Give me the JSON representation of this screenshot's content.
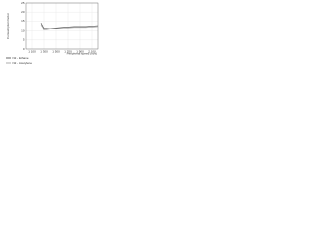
{
  "chart_data": {
    "type": "line",
    "x_label": "Peripheral speed (m/s)",
    "y_label": "Consumption factor",
    "x": [
      1250,
      1300,
      1400,
      1600,
      1800,
      2000,
      2200
    ],
    "series": [
      {
        "name": "N2 - Ethane",
        "color": "#444444",
        "values": [
          14,
          11,
          11,
          11.5,
          12,
          12,
          12.5
        ]
      },
      {
        "name": "N2 - Acetylene",
        "color": "#9a9a9a",
        "values": [
          13,
          10.5,
          11,
          11,
          11.5,
          11.5,
          12
        ]
      }
    ],
    "xlim": [
      1000,
      2200
    ],
    "xticks": [
      {
        "value": 1100,
        "label": "1 100"
      },
      {
        "value": 1300,
        "label": "1 300"
      },
      {
        "value": 1500,
        "label": "1 500"
      },
      {
        "value": 1700,
        "label": "1 700"
      },
      {
        "value": 1900,
        "label": "1 900"
      },
      {
        "value": 2100,
        "label": "2 100"
      }
    ],
    "ylim": [
      0,
      25
    ],
    "yticks": [
      0,
      5,
      10,
      15,
      20,
      25
    ],
    "grid": true,
    "legend": "bottom-left"
  }
}
